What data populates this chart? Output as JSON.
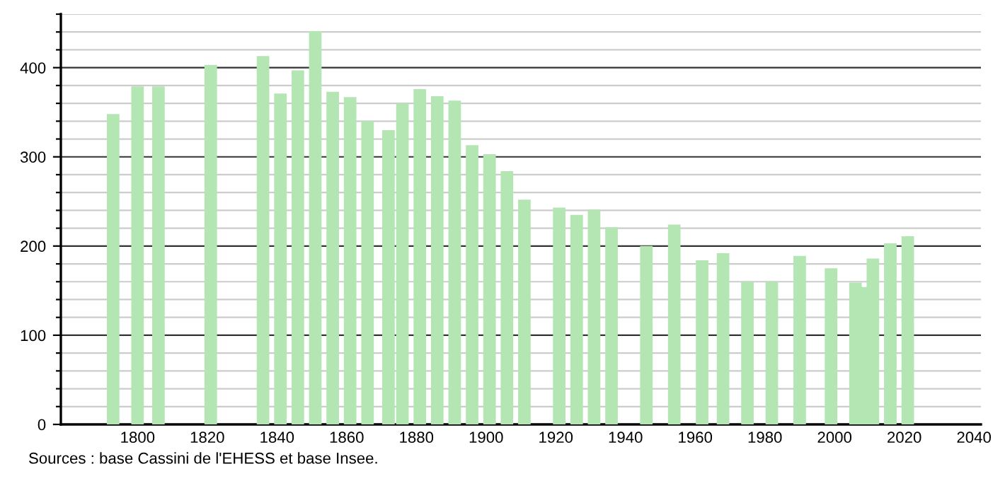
{
  "chart_data": {
    "type": "bar",
    "color": "#b3e6b3",
    "x": [
      1793,
      1800,
      1806,
      1821,
      1836,
      1841,
      1846,
      1851,
      1856,
      1861,
      1866,
      1872,
      1876,
      1881,
      1886,
      1891,
      1896,
      1901,
      1906,
      1911,
      1921,
      1926,
      1931,
      1936,
      1946,
      1954,
      1962,
      1968,
      1975,
      1982,
      1990,
      1999,
      2006,
      2008,
      2011,
      2016,
      2021
    ],
    "values": [
      348,
      379,
      379,
      403,
      413,
      371,
      397,
      441,
      373,
      367,
      340,
      330,
      360,
      376,
      368,
      363,
      313,
      303,
      284,
      252,
      243,
      235,
      241,
      221,
      200,
      224,
      184,
      192,
      160,
      160,
      189,
      175,
      159,
      154,
      186,
      203,
      211
    ],
    "xlim": [
      1778,
      2042
    ],
    "xticks": [
      1800,
      1820,
      1840,
      1860,
      1880,
      1900,
      1920,
      1940,
      1960,
      1980,
      2000,
      2020,
      2040
    ],
    "ylim": [
      0,
      460
    ],
    "yticks": [
      0,
      {
        "value": 20,
        "label": null
      },
      {
        "value": 40,
        "label": null
      },
      {
        "value": 60,
        "label": null
      },
      {
        "value": 80,
        "label": null
      },
      100,
      {
        "value": 120,
        "label": null
      },
      {
        "value": 140,
        "label": null
      },
      {
        "value": 160,
        "label": null
      },
      {
        "value": 180,
        "label": null
      },
      200,
      {
        "value": 220,
        "label": null
      },
      {
        "value": 240,
        "label": null
      },
      {
        "value": 260,
        "label": null
      },
      {
        "value": 280,
        "label": null
      },
      300,
      {
        "value": 320,
        "label": null
      },
      {
        "value": 340,
        "label": null
      },
      {
        "value": 360,
        "label": null
      },
      {
        "value": 380,
        "label": null
      },
      400,
      {
        "value": 420,
        "label": null
      },
      {
        "value": 440,
        "label": null
      },
      {
        "value": 460,
        "label": null
      }
    ],
    "grid": "y",
    "annotations": [
      "Sources : base Cassini de l'EHESS et base Insee."
    ]
  }
}
